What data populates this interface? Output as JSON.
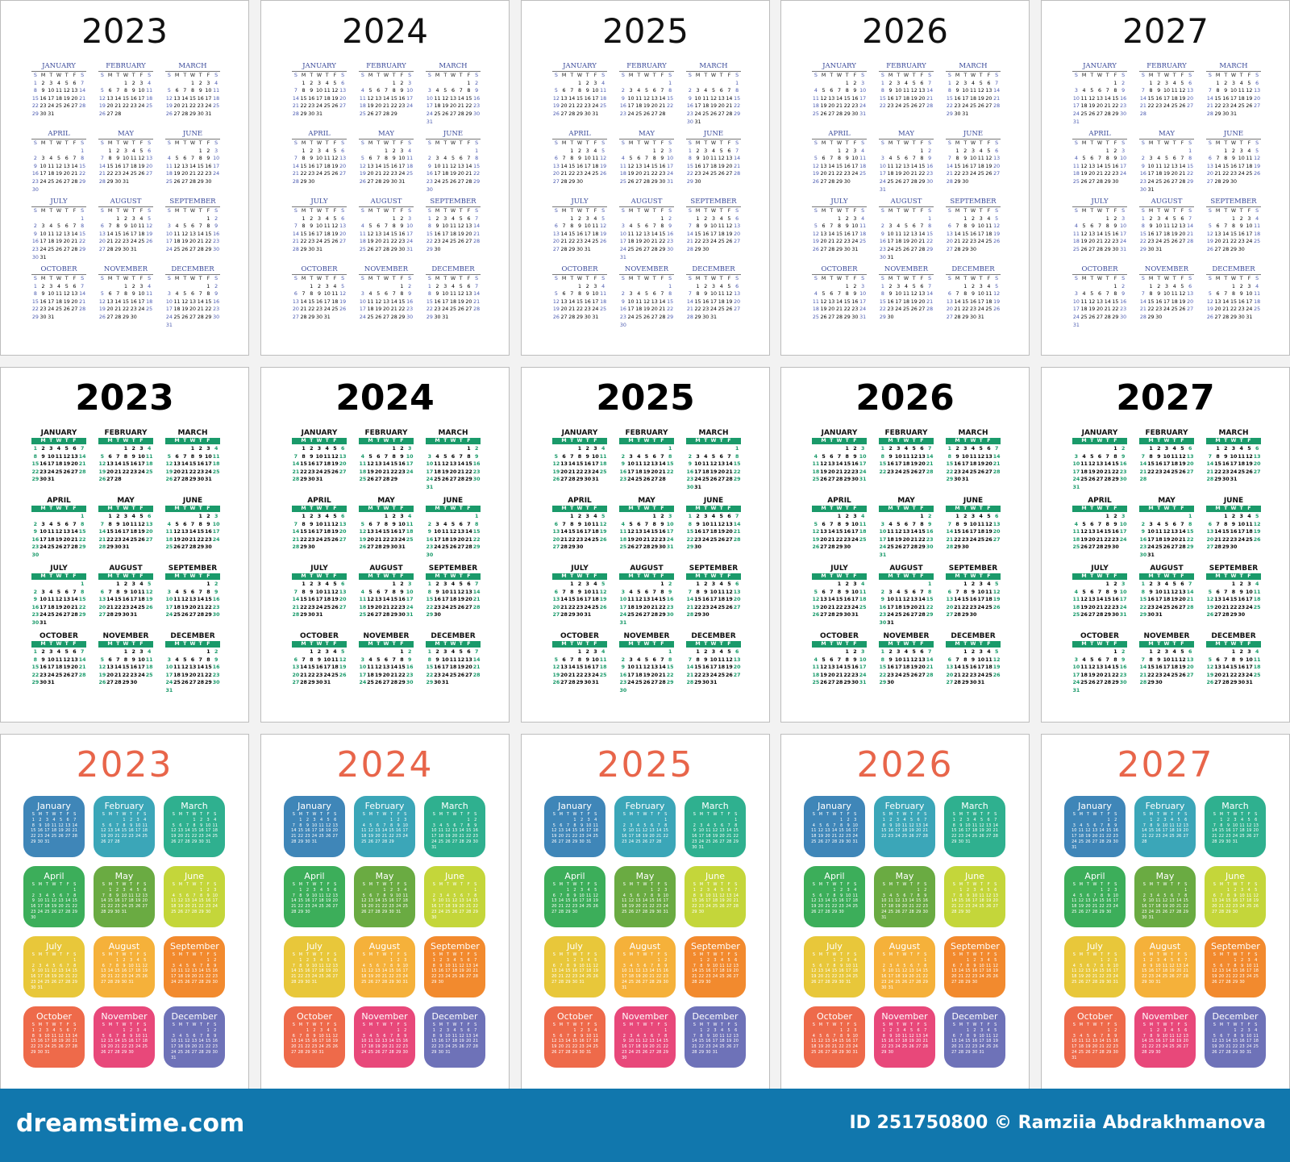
{
  "weekday_letters": [
    "S",
    "M",
    "T",
    "W",
    "T",
    "F",
    "S"
  ],
  "month_names_upper": [
    "JANUARY",
    "FEBRUARY",
    "MARCH",
    "APRIL",
    "MAY",
    "JUNE",
    "JULY",
    "AUGUST",
    "SEPTEMBER",
    "OCTOBER",
    "NOVEMBER",
    "DECEMBER"
  ],
  "month_names_title": [
    "January",
    "February",
    "March",
    "April",
    "May",
    "June",
    "July",
    "August",
    "September",
    "October",
    "November",
    "December"
  ],
  "month_lengths": [
    31,
    28,
    31,
    30,
    31,
    30,
    31,
    31,
    30,
    31,
    30,
    31
  ],
  "years": [
    {
      "year": "2023",
      "feb_days": 28,
      "first_weekdays": [
        0,
        3,
        3,
        6,
        1,
        4,
        6,
        2,
        5,
        0,
        3,
        5
      ]
    },
    {
      "year": "2024",
      "feb_days": 29,
      "first_weekdays": [
        1,
        4,
        5,
        1,
        3,
        6,
        1,
        4,
        0,
        2,
        5,
        0
      ]
    },
    {
      "year": "2025",
      "feb_days": 28,
      "first_weekdays": [
        3,
        6,
        6,
        2,
        4,
        0,
        2,
        5,
        1,
        3,
        6,
        1
      ]
    },
    {
      "year": "2026",
      "feb_days": 28,
      "first_weekdays": [
        4,
        0,
        0,
        3,
        5,
        1,
        3,
        6,
        2,
        4,
        0,
        2
      ]
    },
    {
      "year": "2027",
      "feb_days": 28,
      "first_weekdays": [
        5,
        1,
        1,
        4,
        6,
        2,
        4,
        0,
        3,
        5,
        1,
        3
      ]
    }
  ],
  "styles": [
    {
      "name": "classic-blue",
      "accent": "#3a4a9a"
    },
    {
      "name": "bold-green",
      "accent": "#1a9a6a"
    },
    {
      "name": "color-tiles",
      "accent": "#e8654a",
      "tile_colors": [
        "#3f86b8",
        "#3ba6b8",
        "#2fb08f",
        "#3cae5a",
        "#6aab42",
        "#c4d63a",
        "#e8c73a",
        "#f5b13a",
        "#f28a2e",
        "#ee6a4a",
        "#e8487a",
        "#6e72b8"
      ]
    }
  ],
  "footer": {
    "logo": "dreamstime.com",
    "credit": "ID 251750800 © Ramziia Abdrakhmanova",
    "background": "#1177ad"
  }
}
